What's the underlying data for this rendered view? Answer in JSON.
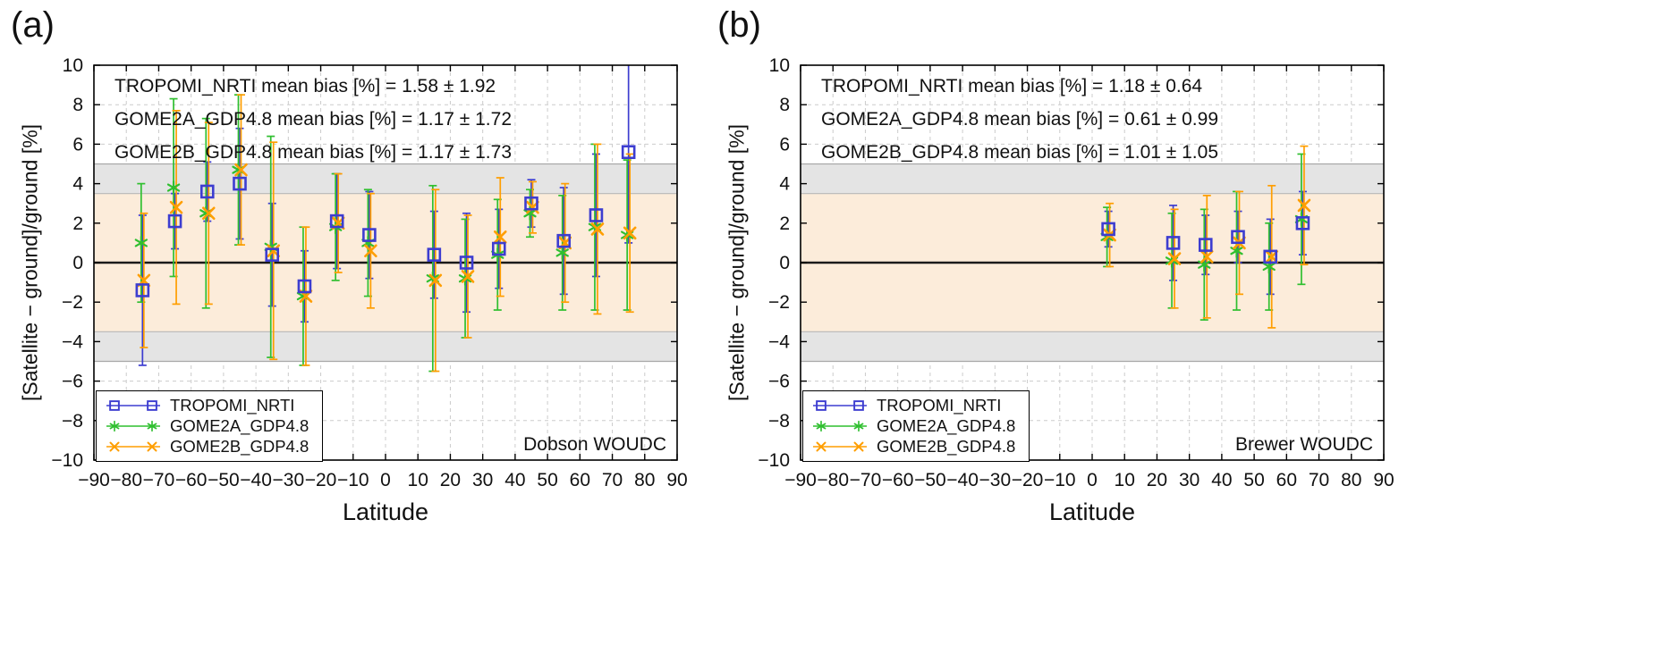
{
  "figure": {
    "background": "#ffffff"
  },
  "colors": {
    "tropomi": "#3d3dd0",
    "gome2a": "#2fbf2f",
    "gome2b": "#ff9e00",
    "band_outer": "#e4e4e4",
    "band_outer_edge": "#a8a8a8",
    "band_inner": "#fcecda",
    "band_inner_edge": "#bdbdbd",
    "grid": "#cccccc",
    "zero_line": "#1a1a1a",
    "frame": "#000000"
  },
  "chart_data": [
    {
      "type": "scatter",
      "panel_label": "(a)",
      "station_label": "Dobson WOUDC",
      "xlabel": "Latitude",
      "ylabel": "[Satellite − ground]/ground [%]",
      "xlim": [
        -90,
        90
      ],
      "ylim": [
        -10,
        10
      ],
      "xticks": [
        -90,
        -80,
        -70,
        -60,
        -50,
        -40,
        -30,
        -20,
        -10,
        0,
        10,
        20,
        30,
        40,
        50,
        60,
        70,
        80,
        90
      ],
      "yticks": [
        -10,
        -8,
        -6,
        -4,
        -2,
        0,
        2,
        4,
        6,
        8,
        10
      ],
      "grid": "dashed",
      "bands": {
        "outer": 5,
        "inner": 3.5
      },
      "annotations": [
        "TROPOMI_NRTI mean bias [%] = 1.58 ± 1.92",
        "GOME2A_GDP4.8 mean bias [%] = 1.17 ± 1.72",
        "GOME2B_GDP4.8 mean bias [%] = 1.17 ± 1.73"
      ],
      "legend_position": "bottom-left",
      "series": [
        {
          "name": "TROPOMI_NRTI",
          "marker": "square",
          "color": "#3d3dd0",
          "x": [
            -75,
            -65,
            -55,
            -45,
            -35,
            -25,
            -15,
            -5,
            15,
            25,
            35,
            45,
            55,
            65,
            75
          ],
          "y": [
            -1.4,
            2.1,
            3.6,
            4.0,
            0.4,
            -1.2,
            2.1,
            1.4,
            0.4,
            0.0,
            0.7,
            3.0,
            1.1,
            2.4,
            5.6
          ],
          "yerr": [
            3.8,
            1.4,
            1.5,
            2.8,
            2.6,
            1.8,
            2.4,
            2.2,
            2.2,
            2.5,
            2.0,
            1.2,
            2.7,
            3.1,
            4.6
          ]
        },
        {
          "name": "GOME2A_GDP4.8",
          "marker": "asterisk",
          "color": "#2fbf2f",
          "x": [
            -75,
            -65,
            -55,
            -45,
            -35,
            -25,
            -15,
            -5,
            15,
            25,
            35,
            45,
            55,
            65,
            75
          ],
          "y": [
            1.0,
            3.8,
            2.5,
            4.7,
            0.8,
            -1.7,
            1.8,
            1.0,
            -0.8,
            -0.8,
            0.4,
            2.5,
            0.5,
            1.8,
            1.4
          ],
          "yerr": [
            3.0,
            4.5,
            4.8,
            3.8,
            5.6,
            3.5,
            2.7,
            2.7,
            4.7,
            3.0,
            2.8,
            1.2,
            2.9,
            4.2,
            3.8
          ]
        },
        {
          "name": "GOME2B_GDP4.8",
          "marker": "x",
          "color": "#ff9e00",
          "x": [
            -75,
            -65,
            -55,
            -45,
            -35,
            -25,
            -15,
            -5,
            15,
            25,
            35,
            45,
            55,
            65,
            75
          ],
          "y": [
            -0.9,
            2.8,
            2.5,
            4.7,
            0.6,
            -1.7,
            2.0,
            0.6,
            -0.9,
            -0.7,
            1.3,
            2.8,
            1.0,
            1.7,
            1.5
          ],
          "yerr": [
            3.4,
            4.9,
            4.6,
            3.8,
            5.5,
            3.5,
            2.5,
            2.9,
            4.6,
            3.1,
            3.0,
            1.3,
            3.0,
            4.3,
            4.0
          ]
        }
      ]
    },
    {
      "type": "scatter",
      "panel_label": "(b)",
      "station_label": "Brewer WOUDC",
      "xlabel": "Latitude",
      "ylabel": "[Satellite − ground]/ground [%]",
      "xlim": [
        -90,
        90
      ],
      "ylim": [
        -10,
        10
      ],
      "xticks": [
        -90,
        -80,
        -70,
        -60,
        -50,
        -40,
        -30,
        -20,
        -10,
        0,
        10,
        20,
        30,
        40,
        50,
        60,
        70,
        80,
        90
      ],
      "yticks": [
        -10,
        -8,
        -6,
        -4,
        -2,
        0,
        2,
        4,
        6,
        8,
        10
      ],
      "grid": "dashed",
      "bands": {
        "outer": 5,
        "inner": 3.5
      },
      "annotations": [
        "TROPOMI_NRTI mean bias [%] = 1.18 ± 0.64",
        "GOME2A_GDP4.8 mean bias [%] = 0.61 ± 0.99",
        "GOME2B_GDP4.8 mean bias [%] = 1.01 ± 1.05"
      ],
      "legend_position": "bottom-left",
      "series": [
        {
          "name": "TROPOMI_NRTI",
          "marker": "square",
          "color": "#3d3dd0",
          "x": [
            5,
            25,
            35,
            45,
            55,
            65
          ],
          "y": [
            1.7,
            1.0,
            0.9,
            1.3,
            0.3,
            2.0
          ],
          "yerr": [
            0.9,
            1.9,
            1.5,
            1.3,
            1.9,
            1.6
          ]
        },
        {
          "name": "GOME2A_GDP4.8",
          "marker": "asterisk",
          "color": "#2fbf2f",
          "x": [
            5,
            25,
            35,
            45,
            55,
            65
          ],
          "y": [
            1.3,
            0.1,
            -0.1,
            0.6,
            -0.2,
            2.2
          ],
          "yerr": [
            1.5,
            2.4,
            2.8,
            3.0,
            2.2,
            3.3
          ]
        },
        {
          "name": "GOME2B_GDP4.8",
          "marker": "x",
          "color": "#ff9e00",
          "x": [
            5,
            25,
            35,
            45,
            55,
            65
          ],
          "y": [
            1.4,
            0.2,
            0.3,
            1.0,
            0.3,
            2.9
          ],
          "yerr": [
            1.6,
            2.5,
            3.1,
            2.6,
            3.6,
            3.0
          ]
        }
      ]
    }
  ]
}
